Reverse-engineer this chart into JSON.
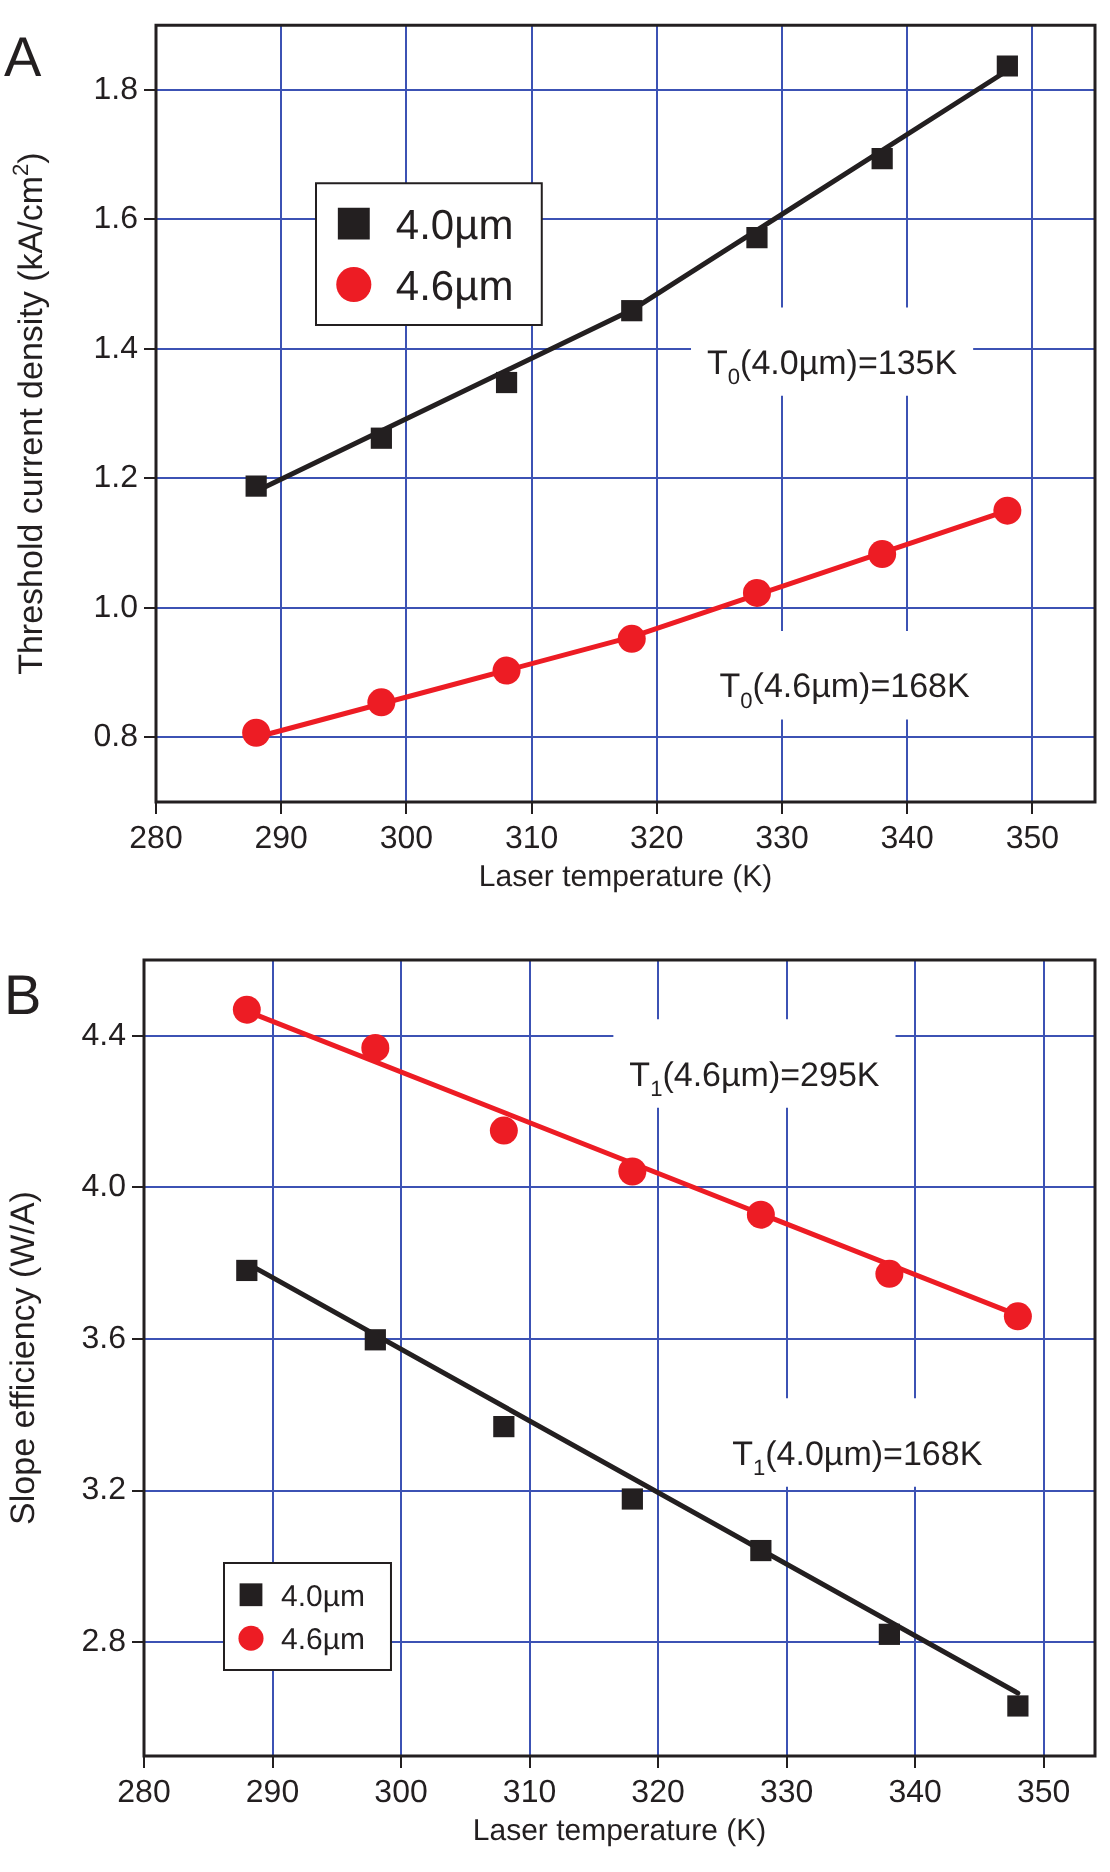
{
  "chart_data": [
    {
      "type": "scatter",
      "title": "A",
      "xlabel": "Laser temperature (K)",
      "ylabel": "Threshold current density (kA/cm$^{2}$)",
      "xlim": [
        280,
        355
      ],
      "xticks": [
        280,
        290,
        300,
        310,
        320,
        330,
        340,
        350
      ],
      "ylim": [
        0.7,
        1.9
      ],
      "yticks": [
        0.8,
        {
          "value": 1.0,
          "label": "1.0"
        },
        1.2,
        1.4,
        1.6,
        1.8
      ],
      "grid": true,
      "legend": "top left",
      "series": [
        {
          "name": "4.0µm",
          "type": "scatter",
          "marker": "square",
          "color": "#231f20",
          "x": [
            288,
            298,
            308,
            318,
            328,
            338,
            348
          ],
          "values": [
            1.188,
            1.262,
            1.348,
            1.459,
            1.572,
            1.694,
            1.837
          ]
        },
        {
          "name": "4.6µm",
          "type": "scatter",
          "marker": "circle",
          "color": "#ed1c24",
          "x": [
            288,
            298,
            308,
            318,
            328,
            338,
            348
          ],
          "values": [
            0.807,
            0.854,
            0.903,
            0.952,
            1.023,
            1.083,
            1.15
          ]
        },
        {
          "type": "line",
          "marker": "none",
          "color": "#231f20",
          "x": [
            288,
            318,
            348
          ],
          "values": [
            1.18,
            1.46,
            1.83
          ]
        },
        {
          "type": "line",
          "marker": "none",
          "color": "#ed1c24",
          "x": [
            288,
            318,
            348
          ],
          "values": [
            0.8,
            0.955,
            1.15
          ]
        }
      ],
      "annotations": [
        "T$_{0}$(4.0µm)=135K",
        "T$_{0}$(4.6µm)=168K"
      ]
    },
    {
      "type": "scatter",
      "title": "B",
      "xlabel": "Laser temperature (K)",
      "ylabel": "Slope efficiency (W/A)",
      "xlim": [
        280,
        354
      ],
      "xticks": [
        280,
        290,
        300,
        310,
        320,
        330,
        340,
        350
      ],
      "ylim": [
        2.5,
        4.6
      ],
      "yticks": [
        2.8,
        3.2,
        3.6,
        {
          "value": 4.0,
          "label": "4.0"
        },
        4.4
      ],
      "grid": true,
      "legend": "bottom left",
      "series": [
        {
          "name": "4.0µm",
          "type": "scatter",
          "marker": "square",
          "color": "#231f20",
          "x": [
            288,
            298,
            308,
            318,
            328,
            338,
            348
          ],
          "values": [
            3.781,
            3.598,
            3.369,
            3.178,
            3.042,
            2.821,
            2.632
          ]
        },
        {
          "name": "4.6µm",
          "type": "scatter",
          "marker": "circle",
          "color": "#ed1c24",
          "x": [
            288,
            298,
            308,
            318,
            328,
            338,
            348
          ],
          "values": [
            4.469,
            4.368,
            4.15,
            4.042,
            3.928,
            3.772,
            3.66
          ]
        },
        {
          "type": "line",
          "marker": "none",
          "color": "#231f20",
          "x": [
            288,
            348
          ],
          "values": [
            3.8,
            2.666
          ]
        },
        {
          "type": "line",
          "marker": "none",
          "color": "#ed1c24",
          "x": [
            288,
            348
          ],
          "values": [
            4.465,
            3.663
          ]
        }
      ],
      "annotations": [
        "T$_{1}$(4.6µm)=295K",
        "T$_{1}$(4.0µm)=168K"
      ]
    }
  ]
}
